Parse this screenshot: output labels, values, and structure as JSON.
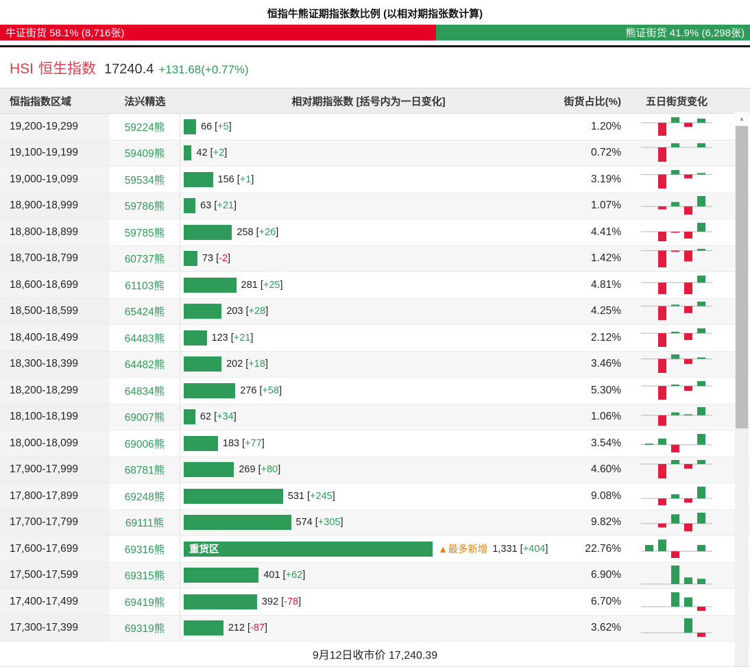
{
  "page_title": "恒指牛熊证期指张数比例 (以相对期指张数计算)",
  "ratio_bar": {
    "bull_label": "牛证街货 58.1% (8,716张)",
    "bear_label": "熊证街货 41.9% (6,298张)",
    "bull_pct": 58.1,
    "bear_pct": 41.9
  },
  "index_header": {
    "symbol": "HSI",
    "name": "恒生指数",
    "price": "17240.4",
    "change": "+131.68(+0.77%)"
  },
  "table_header": {
    "col_range": "恒指指数区域",
    "col_pick": "法兴精选",
    "col_contracts": "相对期指张数 [括号内为一日变化]",
    "col_pct": "街货占比(%)",
    "col_five_day": "五日街货变化"
  },
  "chart_data": {
    "type": "bar",
    "title": "恒指牛熊证期指张数比例 (以相对期指张数计算)",
    "xlabel": "相对期指张数",
    "xlim": [
      0,
      1331
    ],
    "categories": [
      "19,200-19,299",
      "19,100-19,199",
      "19,000-19,099",
      "18,900-18,999",
      "18,800-18,899",
      "18,700-18,799",
      "18,600-18,699",
      "18,500-18,599",
      "18,400-18,499",
      "18,300-18,399",
      "18,200-18,299",
      "18,100-18,199",
      "18,000-18,099",
      "17,900-17,999",
      "17,800-17,899",
      "17,700-17,799",
      "17,600-17,699",
      "17,500-17,599",
      "17,400-17,499",
      "17,300-17,399"
    ],
    "codes": [
      "59224熊",
      "59409熊",
      "59534熊",
      "59786熊",
      "59785熊",
      "60737熊",
      "61103熊",
      "65424熊",
      "64483熊",
      "64482熊",
      "64834熊",
      "69007熊",
      "69006熊",
      "68781熊",
      "69248熊",
      "69111熊",
      "69316熊",
      "69315熊",
      "69419熊",
      "69319熊"
    ],
    "values": [
      66,
      42,
      156,
      63,
      258,
      73,
      281,
      203,
      123,
      202,
      276,
      62,
      183,
      269,
      531,
      574,
      1331,
      401,
      392,
      212
    ],
    "day_changes": [
      "+5",
      "+2",
      "+1",
      "+21",
      "+26",
      "-2",
      "+25",
      "+28",
      "+21",
      "+18",
      "+58",
      "+34",
      "+77",
      "+80",
      "+245",
      "+305",
      "+404",
      "+62",
      "-78",
      "-87"
    ],
    "outstanding_pct": [
      "1.20%",
      "0.72%",
      "3.19%",
      "1.07%",
      "4.41%",
      "1.42%",
      "4.81%",
      "4.25%",
      "2.12%",
      "3.46%",
      "5.30%",
      "1.06%",
      "3.54%",
      "4.60%",
      "9.08%",
      "9.82%",
      "22.76%",
      "6.90%",
      "6.70%",
      "3.62%"
    ],
    "five_day_trend": [
      [
        0,
        -2.8,
        1.2,
        -0.9,
        0.9
      ],
      [
        0,
        -2.8,
        0.8,
        0,
        0.8
      ],
      [
        0,
        -2.8,
        0.9,
        -0.8,
        0.3
      ],
      [
        0,
        -0.8,
        1.2,
        -2.2,
        2.8
      ],
      [
        0,
        -2.8,
        -0.2,
        -2,
        2.6
      ],
      [
        0,
        -2.8,
        -0.2,
        -1.8,
        0.3
      ],
      [
        0,
        -2.6,
        0,
        -2.6,
        1.6
      ],
      [
        0,
        -2.8,
        0.3,
        -1.4,
        0.9
      ],
      [
        0,
        -2.8,
        0.3,
        -1.4,
        1
      ],
      [
        0,
        -2.8,
        0.9,
        -1,
        0.3
      ],
      [
        0,
        -2.8,
        0.3,
        -1,
        1
      ],
      [
        0,
        -2.8,
        0.8,
        0.2,
        2.2
      ],
      [
        0.3,
        1.6,
        -2,
        0,
        2.8
      ],
      [
        0,
        -2.8,
        0.8,
        -0.9,
        0.8
      ],
      [
        0,
        -1.6,
        1,
        -1,
        2.8
      ],
      [
        0,
        -1,
        2.4,
        -2,
        2.8
      ],
      [
        1.5,
        2.8,
        -1.6,
        0,
        1.5
      ],
      [
        0,
        0,
        2.8,
        1,
        0.8
      ],
      [
        0,
        0,
        2.8,
        1.8,
        -0.8
      ],
      [
        0,
        0,
        0,
        2.8,
        -0.8
      ]
    ],
    "heavy_zone": {
      "index": 16,
      "label": "重货区",
      "annotation": "▲最多新增"
    }
  },
  "footer": {
    "close_price_label": "9月12日收市价 17,240.39"
  },
  "icons": {
    "scroll_up": "▲"
  },
  "colors": {
    "green": "#2e9c58",
    "red": "#e31b3e",
    "banner_red": "#e60023",
    "orange": "#f08200"
  }
}
